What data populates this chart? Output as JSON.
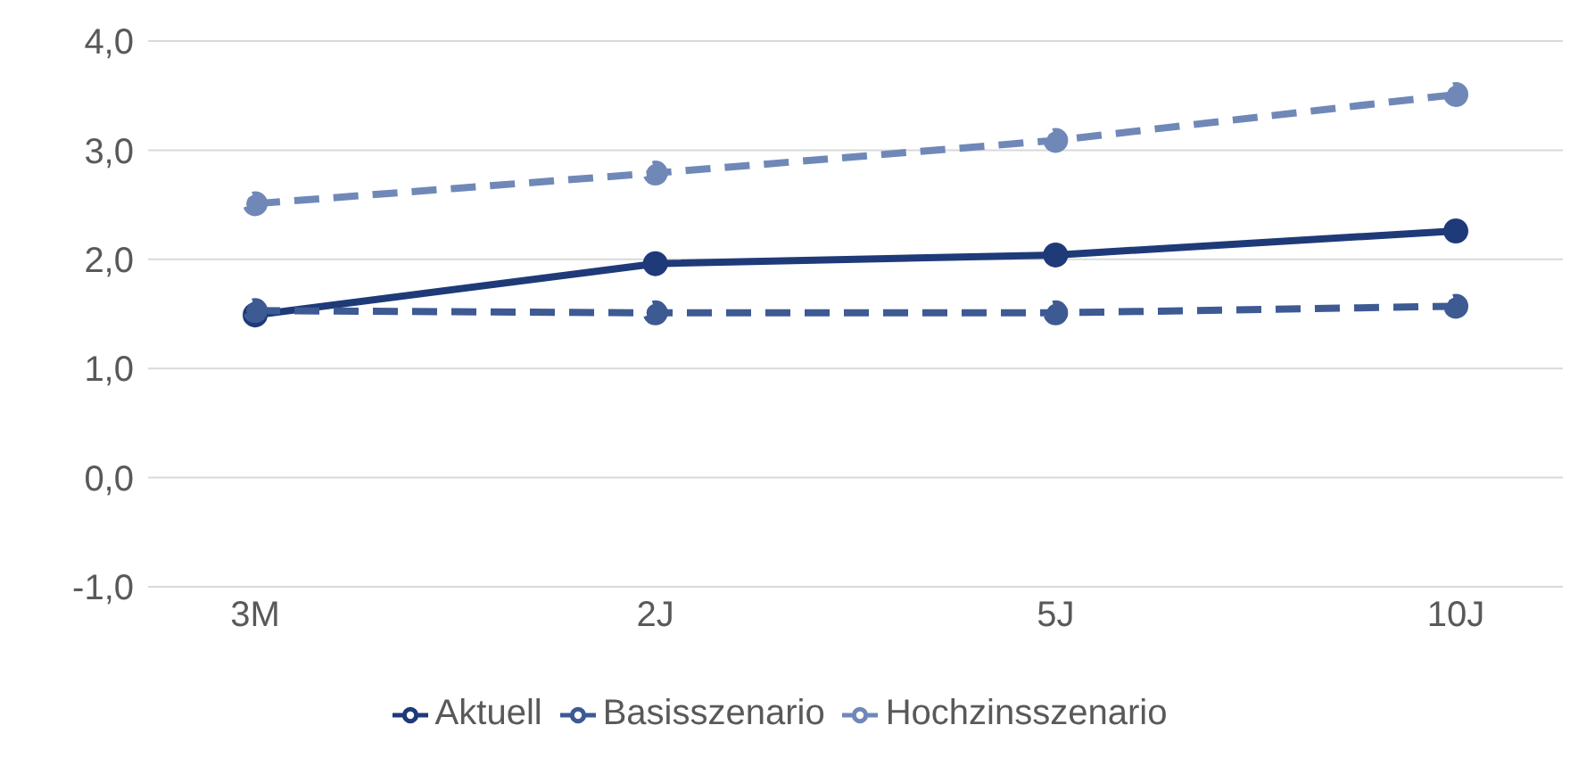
{
  "chart_data": {
    "type": "line",
    "categories": [
      "3M",
      "2J",
      "5J",
      "10J"
    ],
    "series": [
      {
        "name": "Aktuell",
        "color": "#1f3a78",
        "values": [
          1.49,
          1.96,
          2.04,
          2.26
        ],
        "line_style": "solid"
      },
      {
        "name": "Basisszenario",
        "color": "#3d5a93",
        "values": [
          1.53,
          1.51,
          1.51,
          1.57
        ],
        "line_style": "dashed"
      },
      {
        "name": "Hochzinsszenario",
        "color": "#7088b8",
        "values": [
          2.51,
          2.79,
          3.09,
          3.51
        ],
        "line_style": "dashed"
      }
    ],
    "ylim": [
      -1,
      4
    ],
    "yticks": [
      {
        "value": -1,
        "label": "-1,0"
      },
      {
        "value": 0,
        "label": "0,0"
      },
      {
        "value": 1,
        "label": "1,0"
      },
      {
        "value": 2,
        "label": "2,0"
      },
      {
        "value": 3,
        "label": "3,0"
      },
      {
        "value": 4,
        "label": "4,0"
      }
    ],
    "grid": "y",
    "legend": "bottom",
    "marker": "circle"
  }
}
